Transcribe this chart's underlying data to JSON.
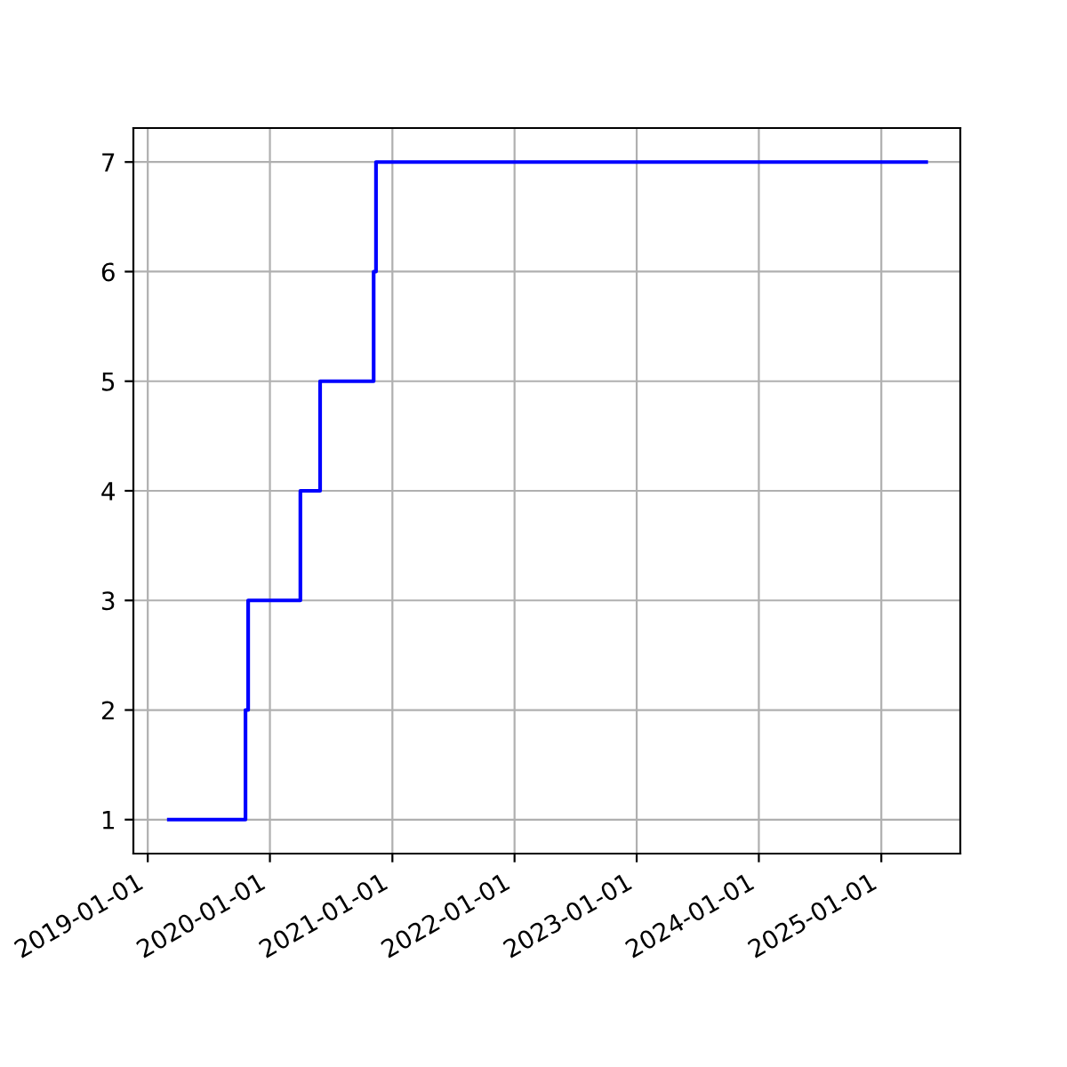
{
  "chart_data": {
    "type": "step",
    "x": [
      "2019-03-05",
      "2019-10-20",
      "2019-10-28",
      "2020-04-01",
      "2020-05-30",
      "2020-11-06",
      "2020-11-13",
      "2025-05-15"
    ],
    "series": [
      {
        "color": "#0000ff",
        "values": [
          1,
          2,
          3,
          4,
          5,
          6,
          7,
          7
        ]
      }
    ],
    "xlim": [
      "2018-11-19",
      "2025-08-25"
    ],
    "xticks": [
      "2019-01-01",
      "2020-01-01",
      "2021-01-01",
      "2022-01-01",
      "2023-01-01",
      "2024-01-01",
      "2025-01-01"
    ],
    "ylim": [
      0.69,
      7.31
    ],
    "yticks": [
      1,
      2,
      3,
      4,
      5,
      6,
      7
    ],
    "grid": true,
    "line_style": "solid"
  }
}
